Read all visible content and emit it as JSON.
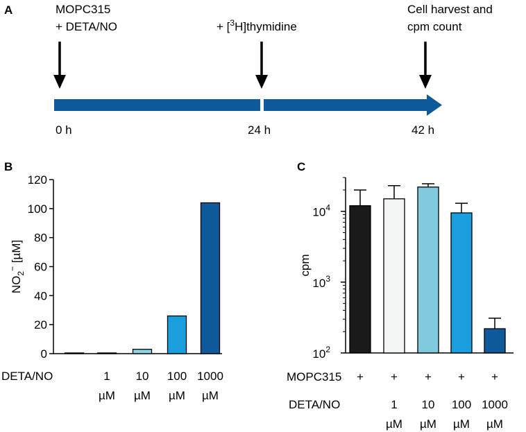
{
  "panel_a": {
    "letter": "A",
    "steps": [
      {
        "line1": "MOPC315",
        "line2": "+ DETA/NO",
        "time": "0 h"
      },
      {
        "prefix": "+ [",
        "superscript": "3",
        "suffix": "H]thymidine",
        "time": "24 h"
      },
      {
        "line1": "Cell harvest and",
        "line2": "cpm count",
        "time": "42 h"
      }
    ],
    "colors": {
      "arrow": "#0f5a9a"
    }
  },
  "chart_data": [
    {
      "type": "bar",
      "panel": "B",
      "title": "",
      "ylabel_main": "NO",
      "ylabel_sub": "2",
      "ylabel_sup": "−",
      "ylabel_unit": " [µM]",
      "ylim": [
        0,
        120
      ],
      "yticks": [
        0,
        20,
        40,
        60,
        80,
        100,
        120
      ],
      "row_label": "DETA/NO",
      "categories": [
        {
          "line1": "",
          "line2": ""
        },
        {
          "line1": "1",
          "line2": "µM"
        },
        {
          "line1": "10",
          "line2": "µM"
        },
        {
          "line1": "100",
          "line2": "µM"
        },
        {
          "line1": "1000",
          "line2": "µM"
        }
      ],
      "values": [
        0.5,
        0.5,
        3,
        26,
        104
      ],
      "colors": [
        "#1a1a1a",
        "#f2f7f5",
        "#8fd3e6",
        "#1a9ede",
        "#0f5a9a"
      ]
    },
    {
      "type": "bar",
      "panel": "C",
      "title": "",
      "ylabel": "cpm",
      "yscale": "log",
      "ylim": [
        100,
        30000
      ],
      "yticks": [
        {
          "value": 100,
          "base": "10",
          "exp": "2"
        },
        {
          "value": 1000,
          "base": "10",
          "exp": "3"
        },
        {
          "value": 10000,
          "base": "10",
          "exp": "4"
        }
      ],
      "row1_label": "MOPC315",
      "row1_values": [
        "+",
        "+",
        "+",
        "+",
        "+"
      ],
      "row2_label": "DETA/NO",
      "categories": [
        {
          "line1": "",
          "line2": ""
        },
        {
          "line1": "1",
          "line2": "µM"
        },
        {
          "line1": "10",
          "line2": "µM"
        },
        {
          "line1": "100",
          "line2": "µM"
        },
        {
          "line1": "1000",
          "line2": "µM"
        }
      ],
      "values": [
        12000,
        15000,
        22000,
        9500,
        220
      ],
      "errors": [
        8000,
        8000,
        2500,
        3500,
        90
      ],
      "colors": [
        "#1a1a1a",
        "#f2f7f5",
        "#7fcbdd",
        "#1a9ede",
        "#0f5a9a"
      ]
    }
  ]
}
